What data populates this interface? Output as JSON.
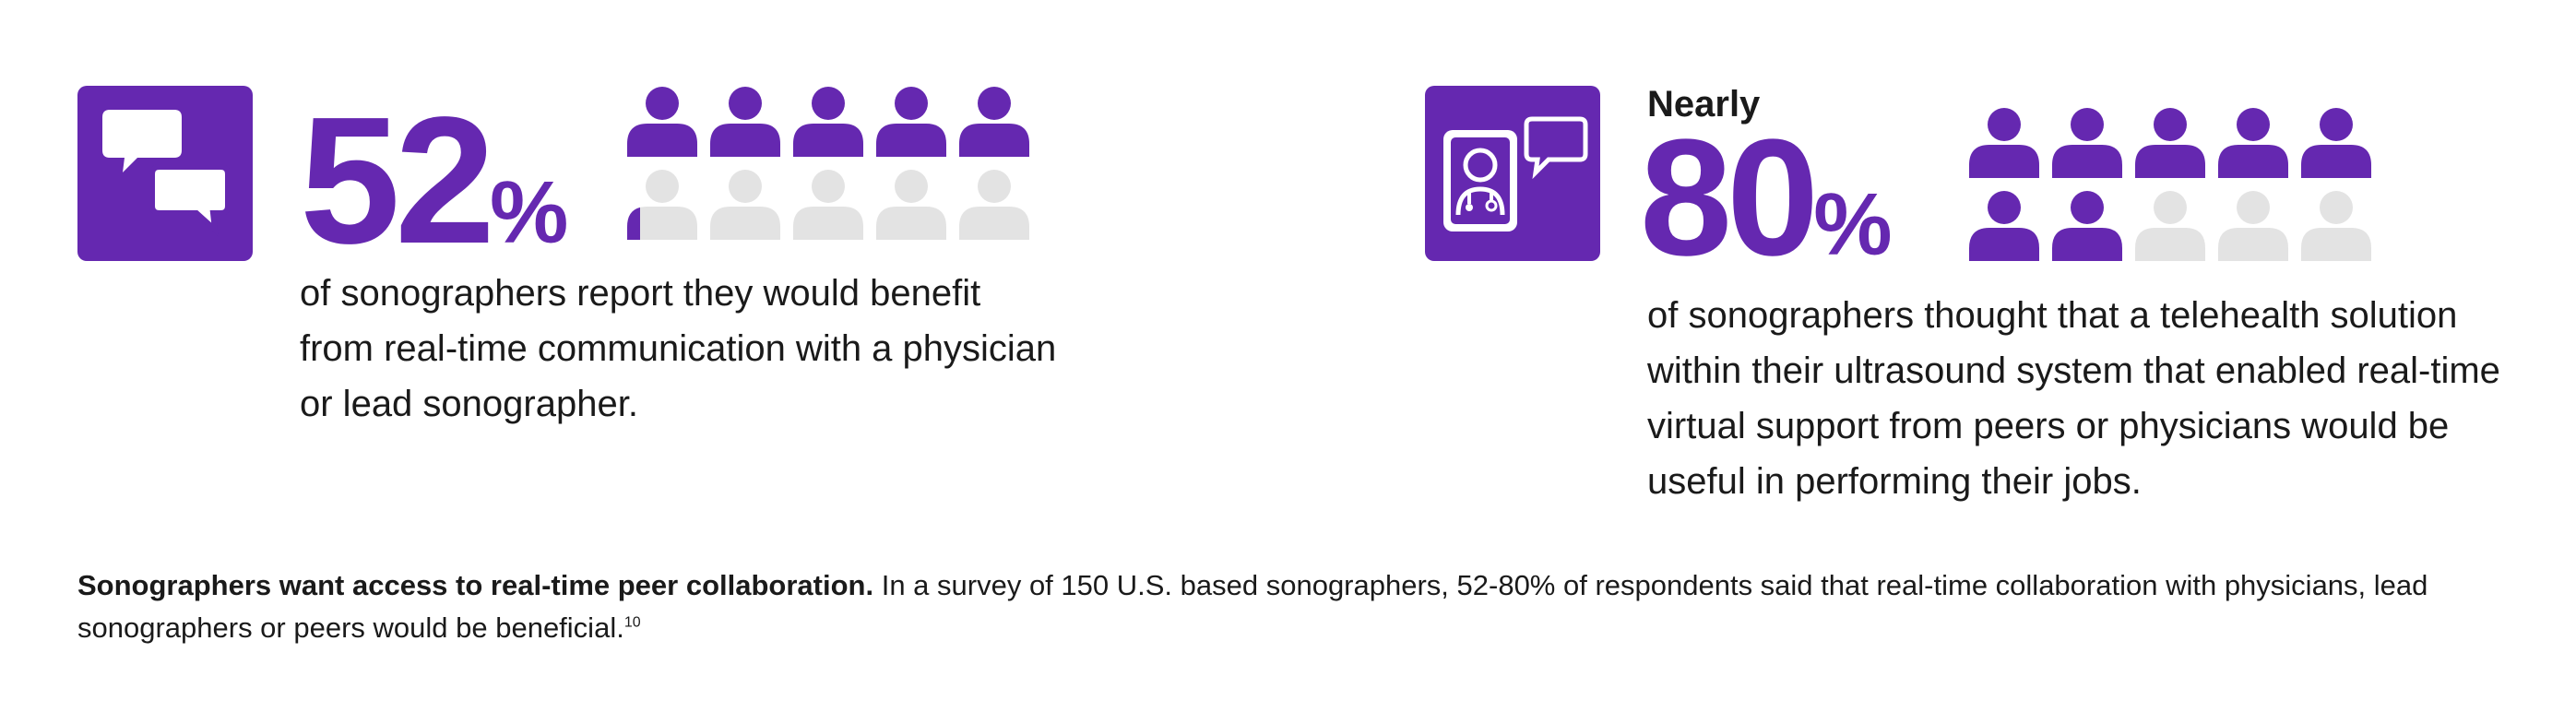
{
  "colors": {
    "accent": "#6528b0",
    "inactive": "#e3e3e3",
    "text": "#1a1a1a"
  },
  "stat_left": {
    "icon": "chat-bubbles-icon",
    "number": "52",
    "percent_symbol": "%",
    "people_total": 10,
    "people_filled": 5.2,
    "description_lines": [
      "of sonographers report they would benefit",
      "from real-time communication with a physician",
      "or lead sonographer."
    ]
  },
  "stat_right": {
    "icon": "telehealth-doctor-icon",
    "prefix": "Nearly",
    "number": "80",
    "percent_symbol": "%",
    "people_total": 10,
    "people_filled": 7,
    "description_lines": [
      "of sonographers thought that a telehealth solution",
      "within their ultrasound system that enabled real-time",
      "virtual support from peers or physicians would be",
      "useful in performing their jobs."
    ]
  },
  "footer": {
    "bold_text": "Sonographers want access to real-time peer collaboration.",
    "body_text": " In a survey of 150 U.S. based sonographers, 52-80% of respondents said that real-time collaboration with physicians, lead sonographers or peers would be beneficial.",
    "superscript": "10"
  }
}
